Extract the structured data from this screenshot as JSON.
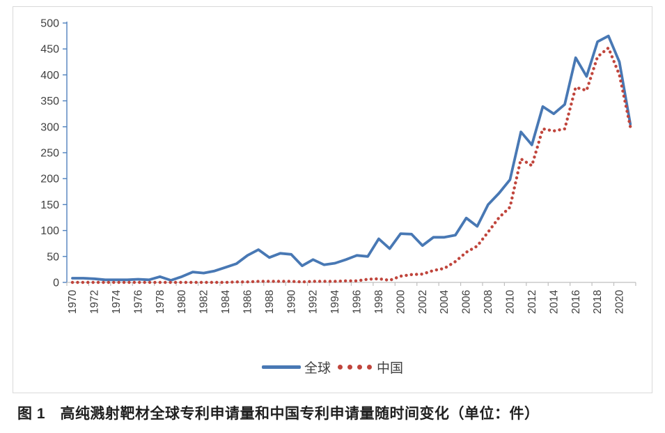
{
  "figure": {
    "caption": "图 1　高纯溅射靶材全球专利申请量和中国专利申请量随时间变化（单位：件）"
  },
  "legend": {
    "global_label": "全球",
    "china_label": "中国"
  },
  "colors": {
    "global_series": "#4878b4",
    "china_series": "#c0453c",
    "y_axis": "#4f81bd",
    "x_axis": "#bfbfbf",
    "tick_label": "#404040",
    "frame_border": "#d9d9d9"
  },
  "chart_data": {
    "type": "line",
    "title": "",
    "xlabel": "",
    "ylabel": "",
    "unit": "件",
    "ylim": [
      0,
      500
    ],
    "ytick_step": 50,
    "xtick_label_step": 2,
    "grid": false,
    "legend_position": "bottom",
    "x": [
      1970,
      1971,
      1972,
      1973,
      1974,
      1975,
      1976,
      1977,
      1978,
      1979,
      1980,
      1981,
      1982,
      1983,
      1984,
      1985,
      1986,
      1987,
      1988,
      1989,
      1990,
      1991,
      1992,
      1993,
      1994,
      1995,
      1996,
      1997,
      1998,
      1999,
      2000,
      2001,
      2002,
      2003,
      2004,
      2005,
      2006,
      2007,
      2008,
      2009,
      2010,
      2011,
      2012,
      2013,
      2014,
      2015,
      2016,
      2017,
      2018,
      2019,
      2020,
      2021
    ],
    "series": [
      {
        "name": "全球",
        "style": "solid",
        "color": "#4878b4",
        "values": [
          8,
          8,
          7,
          5,
          5,
          5,
          6,
          5,
          11,
          4,
          11,
          20,
          18,
          22,
          29,
          36,
          52,
          63,
          48,
          56,
          54,
          32,
          44,
          34,
          37,
          44,
          52,
          50,
          84,
          65,
          94,
          93,
          71,
          87,
          87,
          91,
          124,
          108,
          150,
          172,
          198,
          290,
          265,
          339,
          325,
          343,
          433,
          397,
          464,
          475,
          425,
          305
        ]
      },
      {
        "name": "中国",
        "style": "dotted",
        "color": "#c0453c",
        "values": [
          0,
          0,
          0,
          0,
          0,
          0,
          0,
          0,
          0,
          0,
          0,
          0,
          0,
          0,
          0,
          1,
          1,
          2,
          2,
          2,
          2,
          1,
          2,
          2,
          2,
          3,
          3,
          6,
          7,
          4,
          12,
          15,
          16,
          23,
          27,
          40,
          58,
          70,
          97,
          125,
          145,
          238,
          225,
          296,
          292,
          296,
          376,
          370,
          435,
          452,
          400,
          300
        ]
      }
    ]
  }
}
